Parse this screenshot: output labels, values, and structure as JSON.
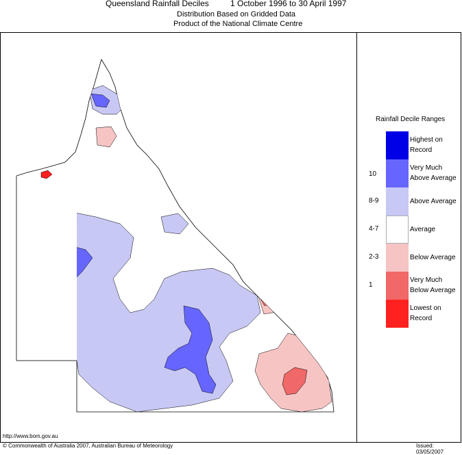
{
  "header": {
    "title": "Queensland Rainfall Deciles",
    "period": "1 October 1996 to 30 April 1997",
    "subtitle_line1": "Distribution Based on Gridded Data",
    "subtitle_line2": "Product of the National Climate Centre"
  },
  "legend": {
    "title": "Rainfall Decile Ranges",
    "items": [
      {
        "label_line1": "Highest on",
        "label_line2": "Record",
        "range": "",
        "color": "#0000e6"
      },
      {
        "label_line1": "Very Much",
        "label_line2": "Above Average",
        "range": "10",
        "color": "#6666ff"
      },
      {
        "label_line1": "Above Average",
        "label_line2": "",
        "range": "8-9",
        "color": "#c8c8f5"
      },
      {
        "label_line1": "Average",
        "label_line2": "",
        "range": "4-7",
        "color": "#ffffff"
      },
      {
        "label_line1": "Below Average",
        "label_line2": "",
        "range": "2-3",
        "color": "#f7c4c4"
      },
      {
        "label_line1": "Very Much",
        "label_line2": "Below Average",
        "range": "1",
        "color": "#f06868"
      },
      {
        "label_line1": "Lowest on",
        "label_line2": "Record",
        "range": "",
        "color": "#ff2020"
      }
    ]
  },
  "footer": {
    "url": "http://www.bom.gov.au",
    "copyright": "© Commonwealth of Australia 2007, Australian Bureau of Meteorology",
    "issued": "Issued: 03/05/2007"
  },
  "colors": {
    "highest": "#0000e6",
    "very_much_above": "#6666ff",
    "above": "#c8c8f5",
    "average": "#ffffff",
    "below": "#f7c4c4",
    "very_much_below": "#f06868",
    "lowest": "#ff2020"
  }
}
